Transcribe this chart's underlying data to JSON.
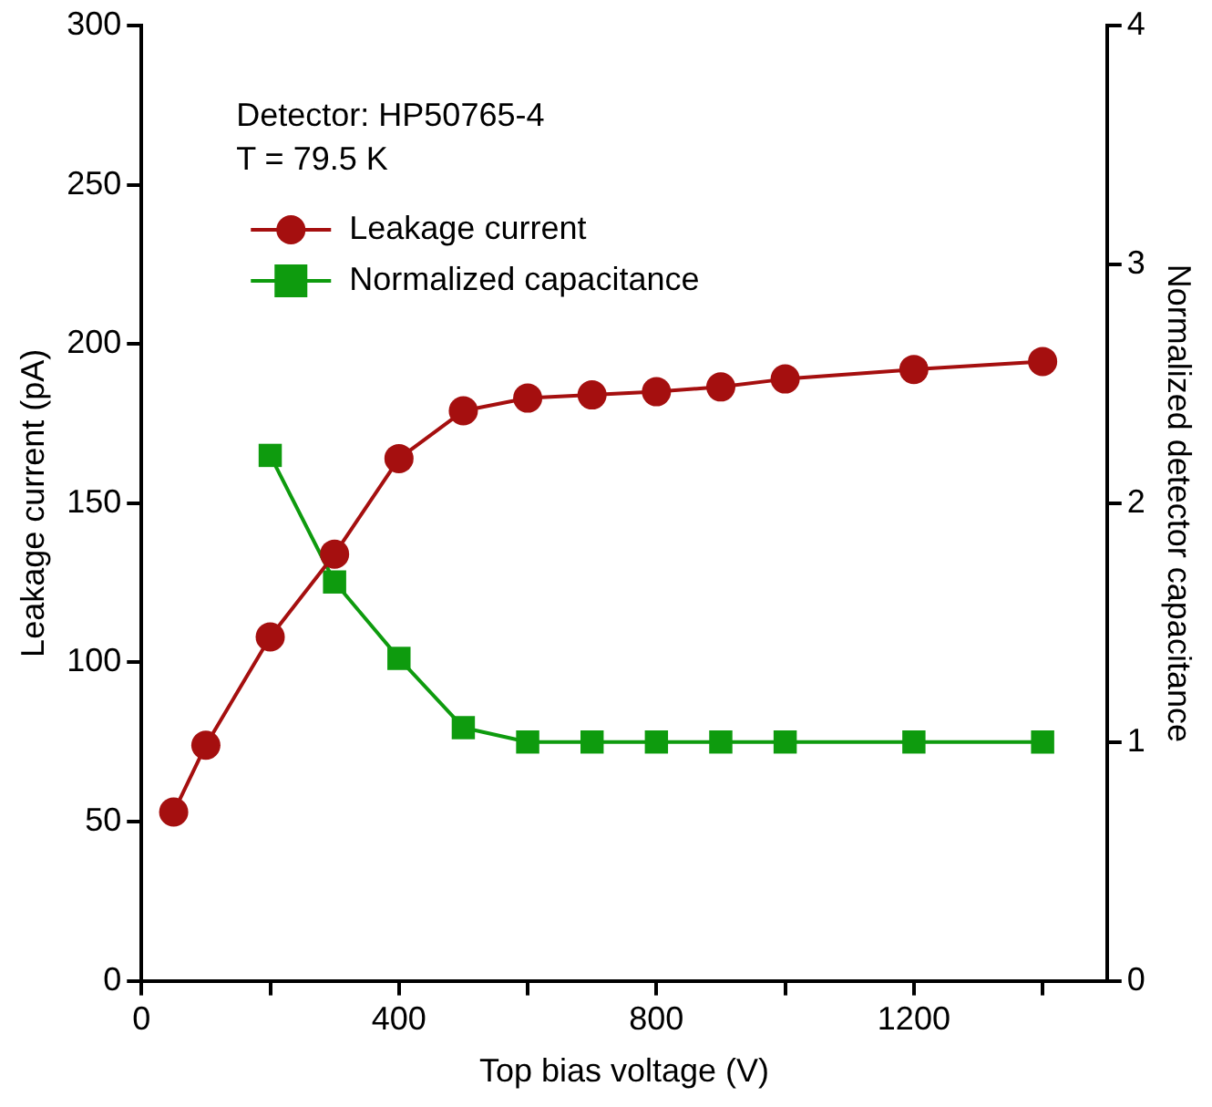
{
  "chart_data": {
    "type": "line",
    "xlabel": "Top bias voltage (V)",
    "ylabel": "Leakage current (pA)",
    "y2label": "Normalized detector capacitance",
    "annotations": [
      "Detector: HP50765-4",
      "T = 79.5 K"
    ],
    "series": [
      {
        "name": "Leakage current",
        "color": "#a50f0f",
        "marker": "circle",
        "x": [
          50,
          100,
          200,
          300,
          400,
          500,
          600,
          700,
          800,
          900,
          1000,
          1200,
          1400
        ],
        "values": [
          53,
          74,
          108,
          134,
          164,
          179,
          183,
          184,
          185,
          186.5,
          189,
          192,
          194.5
        ]
      },
      {
        "name": "Normalized capacitance",
        "color": "#0e9b0e",
        "marker": "square",
        "axis": "y2",
        "x": [
          200,
          300,
          400,
          500,
          600,
          700,
          800,
          900,
          1000,
          1200,
          1400
        ],
        "values": [
          2.2,
          1.67,
          1.35,
          1.06,
          1,
          1,
          1,
          1,
          1,
          1,
          1
        ]
      }
    ],
    "xlim": [
      0,
      1500
    ],
    "xticks": [
      0,
      {
        "value": 200,
        "label": null
      },
      400,
      {
        "value": 600,
        "label": null
      },
      800,
      {
        "value": 1000,
        "label": null
      },
      1200,
      {
        "value": 1400,
        "label": null
      }
    ],
    "ylim": [
      0,
      300
    ],
    "yticks": [
      0,
      50,
      100,
      150,
      200,
      250,
      300
    ],
    "y2lim": [
      0,
      4
    ],
    "y2ticks": [
      0,
      1,
      2,
      3,
      4
    ],
    "legend": "top left",
    "line_style": "solid"
  }
}
